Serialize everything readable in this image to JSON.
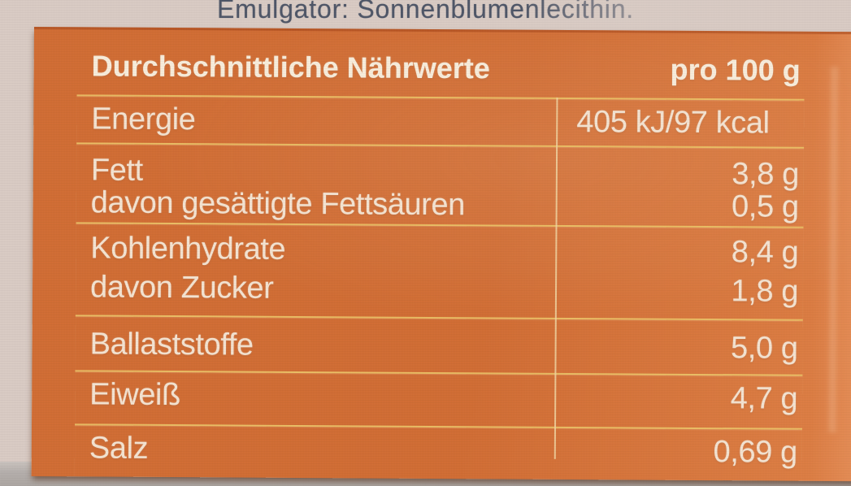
{
  "package_text": {
    "ingredients_line": "Emulgator: Sonnenblumenlecithin."
  },
  "nutrition_table": {
    "header": {
      "title": "Durchschnittliche Nährwerte",
      "per_label": "pro 100 g"
    },
    "sections": [
      {
        "rows": [
          {
            "label": "Energie",
            "value": "405 kJ/97 kcal"
          }
        ]
      },
      {
        "rows": [
          {
            "label": "Fett",
            "value": "3,8 g"
          },
          {
            "label": "davon gesättigte Fettsäuren",
            "value": "0,5 g"
          }
        ]
      },
      {
        "rows": [
          {
            "label": "Kohlenhydrate",
            "value": "8,4 g"
          },
          {
            "label": "davon Zucker",
            "value": "1,8 g"
          }
        ]
      },
      {
        "rows": [
          {
            "label": "Ballaststoffe",
            "value": "5,0 g"
          }
        ]
      },
      {
        "rows": [
          {
            "label": "Eiweiß",
            "value": "4,7 g"
          }
        ]
      },
      {
        "rows": [
          {
            "label": "Salz",
            "value": "0,69 g"
          }
        ]
      }
    ]
  },
  "colors": {
    "panel-orange": "#d06c33",
    "panel-orange-light": "#dd7f45",
    "rule-gold": "#e9bc63",
    "divider-cream": "#eed2a0",
    "text-cream": "#f3e2d0",
    "header-cream": "#f7ecda",
    "ink-blue": "#4e5566",
    "bg-beige": "#d8cac3",
    "floor-gray": "#b3adaa"
  }
}
